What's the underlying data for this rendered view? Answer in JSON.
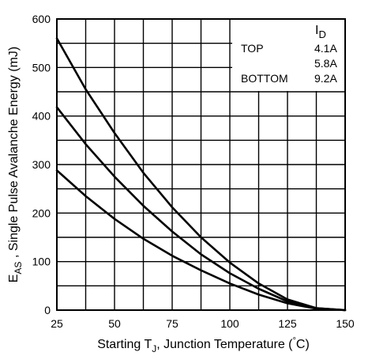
{
  "chart_data": {
    "type": "line",
    "xlabel": {
      "pre": "Starting T",
      "sub": "J",
      "post": ", Junction Temperature  (",
      "deg": "°",
      "unit": "C)"
    },
    "ylabel": {
      "main": "E",
      "sub": "AS",
      "post": " , Single Pulse Avalanche Energy (mJ)"
    },
    "xlim": [
      25,
      150
    ],
    "ylim": [
      0,
      600
    ],
    "xticks": [
      "25",
      "50",
      "75",
      "100",
      "125",
      "150"
    ],
    "yticks": [
      "0",
      "100",
      "200",
      "300",
      "400",
      "500",
      "600"
    ],
    "legend": {
      "header_main": "I",
      "header_sub": "D",
      "rows": [
        {
          "label": "TOP",
          "value": "4.1A"
        },
        {
          "label": "",
          "value": "5.8A"
        },
        {
          "label": "BOTTOM",
          "value": "9.2A"
        }
      ]
    },
    "series": [
      {
        "x": [
          25,
          37.5,
          50,
          62.5,
          75,
          87.5,
          100,
          112.5,
          125,
          137.5,
          150
        ],
        "y": [
          560,
          455,
          365,
          283,
          212,
          150,
          98,
          55,
          22,
          4,
          0
        ]
      },
      {
        "x": [
          25,
          37.5,
          50,
          62.5,
          75,
          87.5,
          100,
          112.5,
          125,
          137.5,
          150
        ],
        "y": [
          418,
          342,
          275,
          215,
          162,
          115,
          76,
          44,
          18,
          4,
          0
        ]
      },
      {
        "x": [
          25,
          37.5,
          50,
          62.5,
          75,
          87.5,
          100,
          112.5,
          125,
          137.5,
          150
        ],
        "y": [
          288,
          235,
          188,
          147,
          112,
          82,
          55,
          32,
          14,
          3,
          0
        ]
      }
    ]
  }
}
